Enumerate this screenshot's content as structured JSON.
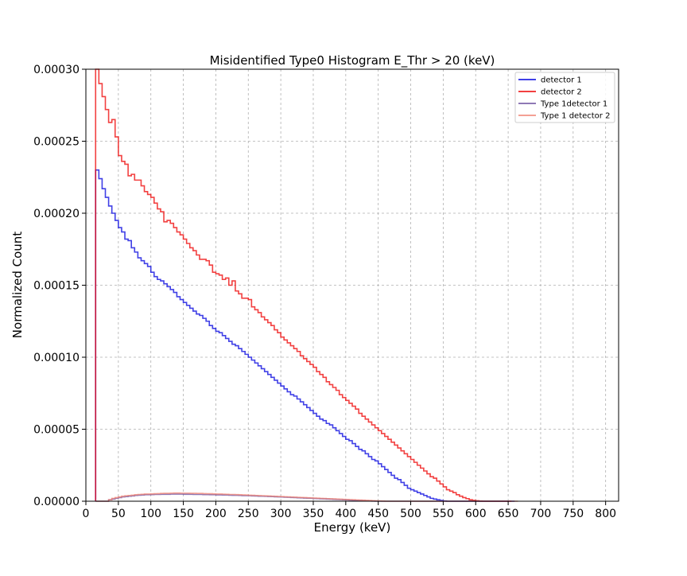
{
  "chart_data": {
    "type": "line",
    "subtype": "step-histogram",
    "title": "Misidentified Type0 Histogram E_Thr > 20 (keV)",
    "xlabel": "Energy (keV)",
    "ylabel": "Normalized Count",
    "xlim": [
      0,
      820
    ],
    "ylim": [
      0,
      0.0003
    ],
    "grid": true,
    "legend_position": "top-right",
    "xticks": [
      0,
      50,
      100,
      150,
      200,
      250,
      300,
      350,
      400,
      450,
      500,
      550,
      600,
      650,
      700,
      750,
      800
    ],
    "xtick_labels": [
      "0",
      "50",
      "100",
      "150",
      "200",
      "250",
      "300",
      "350",
      "400",
      "450",
      "500",
      "550",
      "600",
      "650",
      "700",
      "750",
      "800"
    ],
    "yticks": [
      0,
      5e-05,
      0.0001,
      0.00015,
      0.0002,
      0.00025,
      0.0003
    ],
    "ytick_labels": [
      "0.00000",
      "0.00005",
      "0.00010",
      "0.00015",
      "0.00020",
      "0.00025",
      "0.00030"
    ],
    "bin_edges_start": 15,
    "bin_width": 5,
    "series": [
      {
        "name": "detector 1",
        "color": "#0000dd",
        "opacity": 0.75,
        "values": [
          0.00023,
          0.000224,
          0.000217,
          0.000211,
          0.000205,
          0.0002,
          0.000195,
          0.00019,
          0.000187,
          0.000182,
          0.000181,
          0.000176,
          0.000173,
          0.000169,
          0.000167,
          0.000165,
          0.000163,
          0.000159,
          0.000156,
          0.000154,
          0.000153,
          0.000151,
          0.000149,
          0.000147,
          0.000145,
          0.000142,
          0.00014,
          0.000138,
          0.000136,
          0.000134,
          0.000132,
          0.00013,
          0.000129,
          0.000127,
          0.000125,
          0.000122,
          0.00012,
          0.000118,
          0.000117,
          0.000115,
          0.000113,
          0.000111,
          0.000109,
          0.000108,
          0.000106,
          0.000104,
          0.000102,
          0.0001,
          9.8e-05,
          9.6e-05,
          9.4e-05,
          9.2e-05,
          9e-05,
          8.8e-05,
          8.6e-05,
          8.4e-05,
          8.2e-05,
          8e-05,
          7.8e-05,
          7.6e-05,
          7.4e-05,
          7.3e-05,
          7.1e-05,
          6.9e-05,
          6.7e-05,
          6.5e-05,
          6.3e-05,
          6.1e-05,
          5.9e-05,
          5.7e-05,
          5.6e-05,
          5.4e-05,
          5.3e-05,
          5.1e-05,
          4.9e-05,
          4.7e-05,
          4.5e-05,
          4.3e-05,
          4.2e-05,
          4e-05,
          3.8e-05,
          3.6e-05,
          3.5e-05,
          3.3e-05,
          3.1e-05,
          2.9e-05,
          2.8e-05,
          2.6e-05,
          2.4e-05,
          2.2e-05,
          2e-05,
          1.8e-05,
          1.6e-05,
          1.5e-05,
          1.3e-05,
          1.1e-05,
          9e-06,
          8e-06,
          7e-06,
          6e-06,
          5e-06,
          4e-06,
          3e-06,
          2e-06,
          1.5e-06,
          1e-06,
          5e-07,
          2e-07,
          0,
          0,
          0,
          0,
          0,
          0,
          0,
          0,
          0,
          0,
          0,
          0,
          0,
          0,
          0,
          0,
          0,
          0,
          0,
          0,
          0
        ]
      },
      {
        "name": "detector 2",
        "color": "#ee0000",
        "opacity": 0.75,
        "values": [
          0.0003,
          0.00029,
          0.000281,
          0.000272,
          0.000263,
          0.000265,
          0.000253,
          0.00024,
          0.000236,
          0.000234,
          0.000226,
          0.000227,
          0.000223,
          0.000223,
          0.000219,
          0.000215,
          0.000213,
          0.000211,
          0.000207,
          0.000203,
          0.000201,
          0.000194,
          0.000195,
          0.000193,
          0.00019,
          0.000187,
          0.000185,
          0.000182,
          0.000179,
          0.000176,
          0.000174,
          0.000171,
          0.000168,
          0.000168,
          0.000167,
          0.000164,
          0.000159,
          0.000158,
          0.000157,
          0.000154,
          0.000155,
          0.00015,
          0.000153,
          0.000146,
          0.000144,
          0.000141,
          0.000141,
          0.00014,
          0.000135,
          0.000133,
          0.000131,
          0.000128,
          0.000126,
          0.000124,
          0.000122,
          0.000119,
          0.000117,
          0.000114,
          0.000112,
          0.00011,
          0.000108,
          0.000106,
          0.000104,
          0.000101,
          9.9e-05,
          9.7e-05,
          9.5e-05,
          9.3e-05,
          9e-05,
          8.8e-05,
          8.6e-05,
          8.3e-05,
          8.1e-05,
          7.9e-05,
          7.7e-05,
          7.4e-05,
          7.2e-05,
          7e-05,
          6.8e-05,
          6.6e-05,
          6.4e-05,
          6.1e-05,
          5.9e-05,
          5.7e-05,
          5.5e-05,
          5.3e-05,
          5.1e-05,
          4.9e-05,
          4.7e-05,
          4.5e-05,
          4.3e-05,
          4.1e-05,
          3.9e-05,
          3.7e-05,
          3.5e-05,
          3.3e-05,
          3.1e-05,
          2.9e-05,
          2.7e-05,
          2.5e-05,
          2.3e-05,
          2.1e-05,
          1.9e-05,
          1.7e-05,
          1.6e-05,
          1.4e-05,
          1.2e-05,
          1e-05,
          8e-06,
          7e-06,
          6e-06,
          4.5e-06,
          3.5e-06,
          2.5e-06,
          1.8e-06,
          1e-06,
          6e-07,
          3e-07,
          1e-07,
          0,
          0,
          0,
          0,
          0,
          0,
          0,
          0,
          0
        ]
      },
      {
        "name": "Type 1detector 1",
        "color": "#6a4c9c",
        "opacity": 0.75,
        "values": [
          0,
          0,
          0,
          0,
          1e-06,
          1.5e-06,
          2e-06,
          2.5e-06,
          3e-06,
          3.2e-06,
          3.5e-06,
          3.7e-06,
          4e-06,
          4.2e-06,
          4.3e-06,
          4.5e-06,
          4.5e-06,
          4.6e-06,
          4.7e-06,
          4.7e-06,
          4.8e-06,
          4.8e-06,
          4.8e-06,
          4.9e-06,
          4.9e-06,
          4.9e-06,
          4.9e-06,
          4.8e-06,
          4.8e-06,
          4.8e-06,
          4.7e-06,
          4.7e-06,
          4.7e-06,
          4.6e-06,
          4.6e-06,
          4.5e-06,
          4.5e-06,
          4.4e-06,
          4.4e-06,
          4.3e-06,
          4.3e-06,
          4.2e-06,
          4.1e-06,
          4.1e-06,
          4e-06,
          3.9e-06,
          3.9e-06,
          3.8e-06,
          3.7e-06,
          3.6e-06,
          3.5e-06,
          3.5e-06,
          3.4e-06,
          3.3e-06,
          3.2e-06,
          3.1e-06,
          3e-06,
          2.9e-06,
          2.8e-06,
          2.7e-06,
          2.6e-06,
          2.5e-06,
          2.4e-06,
          2.3e-06,
          2.2e-06,
          2.1e-06,
          2e-06,
          1.9e-06,
          1.8e-06,
          1.7e-06,
          1.6e-06,
          1.5e-06,
          1.4e-06,
          1.3e-06,
          1.2e-06,
          1.1e-06,
          1e-06,
          9e-07,
          8e-07,
          7e-07,
          6e-07,
          5e-07,
          4e-07,
          3e-07,
          2e-07,
          1e-07,
          0,
          0,
          0,
          0,
          0,
          0,
          0,
          0,
          0,
          0,
          0,
          0,
          0,
          0,
          0,
          0,
          0,
          0,
          0,
          0,
          0,
          0,
          0,
          0,
          0,
          0,
          0,
          0,
          0,
          0,
          0,
          0,
          0,
          0,
          0,
          0,
          0,
          0,
          0,
          0,
          0
        ]
      },
      {
        "name": "Type 1 detector 2",
        "color": "#f08070",
        "opacity": 0.75,
        "values": [
          0,
          0,
          0,
          0,
          1e-06,
          2e-06,
          2.5e-06,
          3e-06,
          3.5e-06,
          3.8e-06,
          4e-06,
          4.2e-06,
          4.5e-06,
          4.7e-06,
          4.8e-06,
          5e-06,
          5e-06,
          5.1e-06,
          5.2e-06,
          5.3e-06,
          5.4e-06,
          5.5e-06,
          5.5e-06,
          5.6e-06,
          5.7e-06,
          5.7e-06,
          5.6e-06,
          5.6e-06,
          5.6e-06,
          5.5e-06,
          5.5e-06,
          5.4e-06,
          5.4e-06,
          5.3e-06,
          5.2e-06,
          5.2e-06,
          5.1e-06,
          5e-06,
          5e-06,
          4.9e-06,
          4.8e-06,
          4.7e-06,
          4.7e-06,
          4.6e-06,
          4.5e-06,
          4.4e-06,
          4.3e-06,
          4.2e-06,
          4.1e-06,
          4e-06,
          3.9e-06,
          3.8e-06,
          3.7e-06,
          3.6e-06,
          3.5e-06,
          3.4e-06,
          3.3e-06,
          3.2e-06,
          3.1e-06,
          3e-06,
          2.9e-06,
          2.8e-06,
          2.7e-06,
          2.6e-06,
          2.5e-06,
          2.4e-06,
          2.3e-06,
          2.2e-06,
          2.1e-06,
          2e-06,
          1.9e-06,
          1.8e-06,
          1.7e-06,
          1.6e-06,
          1.5e-06,
          1.4e-06,
          1.3e-06,
          1.2e-06,
          1.1e-06,
          1e-06,
          9e-07,
          8e-07,
          7e-07,
          6e-07,
          5e-07,
          4e-07,
          3e-07,
          2e-07,
          1e-07,
          0,
          0,
          0,
          0,
          0,
          0,
          0,
          0,
          0,
          0,
          0,
          0,
          0,
          0,
          0,
          0,
          0,
          0,
          0,
          0,
          0,
          0,
          0,
          0,
          0,
          0,
          0,
          0,
          0,
          0,
          0,
          0,
          0,
          0,
          0,
          0,
          0,
          0,
          0,
          0,
          0
        ]
      }
    ]
  }
}
